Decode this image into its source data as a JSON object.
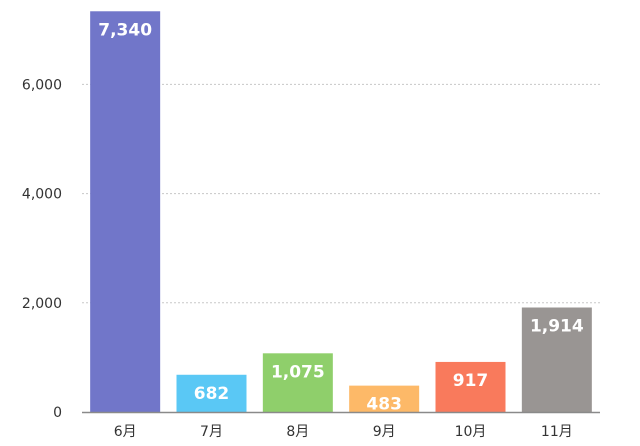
{
  "chart_data": {
    "type": "bar",
    "categories": [
      "6月",
      "7月",
      "8月",
      "9月",
      "10月",
      "11月"
    ],
    "values": [
      7340,
      682,
      1075,
      483,
      917,
      1914
    ],
    "value_labels": [
      "7,340",
      "682",
      "1,075",
      "483",
      "917",
      "1,914"
    ],
    "colors": [
      "#7176c9",
      "#5ac8f5",
      "#8fcf6b",
      "#fdb968",
      "#f97a5c",
      "#999593"
    ],
    "yticks": [
      0,
      2000,
      4000,
      6000
    ],
    "ytick_labels": [
      "0",
      "2,000",
      "4,000",
      "6,000"
    ],
    "ylim": [
      0,
      7400
    ],
    "grid": true,
    "title": "",
    "xlabel": "",
    "ylabel": ""
  }
}
